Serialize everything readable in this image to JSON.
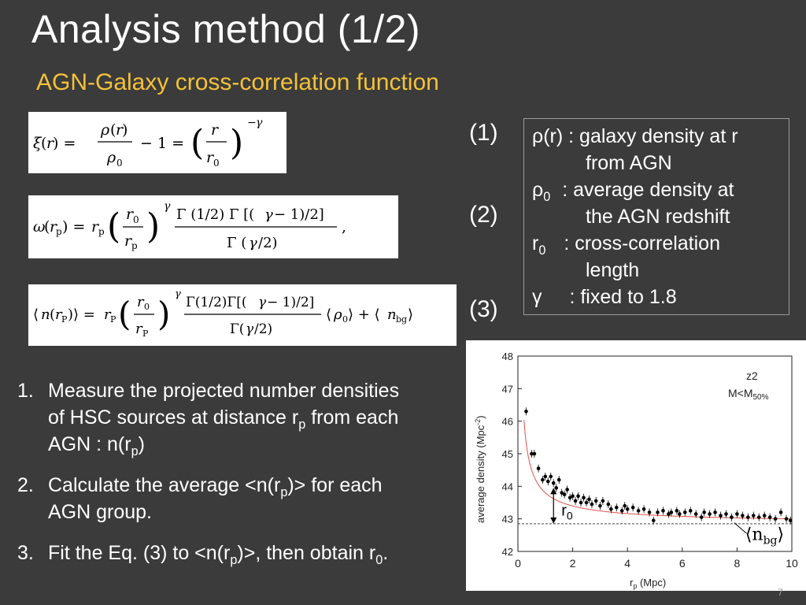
{
  "slide": {
    "title": "Analysis method (1/2)",
    "subtitle": "AGN-Galaxy cross-correlation function",
    "page_number": "7",
    "accent_color": "#f3c13a",
    "background_color": "#3b3b3b"
  },
  "equations": [
    {
      "number": "(1)",
      "formula": "ξ(r) = ρ(r)/ρ0 − 1 = (r/r0)^−γ"
    },
    {
      "number": "(2)",
      "formula": "ω(rp) = rp (r0/rp)^γ Γ(1/2) Γ[(γ − 1)/2] / Γ(γ/2),"
    },
    {
      "number": "(3)",
      "formula": "⟨n(rp)⟩ = rp (r0/rp)^γ Γ(1/2)Γ[(γ − 1)/2] / Γ(γ/2) ⟨ρ0⟩ + ⟨nbg⟩"
    }
  ],
  "legend": {
    "rho_sym": "ρ",
    "rho_arg": "(r)",
    "rho_desc_1": " : galaxy density at r",
    "rho_desc_2": "from AGN",
    "rho0_sym": "ρ",
    "rho0_sub": "0",
    "rho0_desc_1": " : average density at",
    "rho0_desc_2": "the AGN redshift",
    "r0_sym": "r",
    "r0_sub": "0",
    "r0_desc_1": " : cross-correlation",
    "r0_desc_2": "length",
    "gamma_sym": "γ",
    "gamma_desc": " : fixed to 1.8"
  },
  "steps": {
    "s1_num": "1.",
    "s1_l1": "Measure the projected number densities",
    "s1_l2a": "of HSC sources at distance r",
    "s1_l2sub": "p",
    "s1_l2b": " from each",
    "s1_l3a": "AGN : n(r",
    "s1_l3sub": "p",
    "s1_l3b": ")",
    "s2_num": "2.",
    "s2_l1a": "Calculate the average <n(r",
    "s2_l1sub": "p",
    "s2_l1b": ")> for each",
    "s2_l2": "AGN group.",
    "s3_num": "3.",
    "s3_a": "Fit the Eq. (3) to <n(r",
    "s3_sub1": "p",
    "s3_b": ")>,  then obtain r",
    "s3_sub2": "0",
    "s3_c": "."
  },
  "chart_data": {
    "type": "scatter",
    "xlabel_main": "r",
    "xlabel_sub": "p",
    "xlabel_unit": " (Mpc)",
    "ylabel": "average density (Mpc",
    "ylabel_sup": "-2",
    "ylabel_end": ")",
    "xlim": [
      0,
      10
    ],
    "ylim": [
      42,
      48
    ],
    "x_ticks": [
      "0",
      "2",
      "4",
      "6",
      "8",
      "10"
    ],
    "y_ticks": [
      "42",
      "43",
      "44",
      "45",
      "46",
      "47",
      "48"
    ],
    "annotation_group": "z2",
    "annotation_cut": "M<M",
    "annotation_cut_sub": "50%",
    "r0_label": "r",
    "r0_sub": "0",
    "nbg_label": "⟨n",
    "nbg_sub": "bg",
    "nbg_end": "⟩",
    "nbg_level": 42.85,
    "r0_value": 1.3,
    "fit_curve": {
      "nbg": 42.85,
      "A": 0.95,
      "gamma_minus_1": 0.8
    },
    "points": [
      [
        0.3,
        46.3
      ],
      [
        0.5,
        45.0
      ],
      [
        0.6,
        45.0
      ],
      [
        0.75,
        44.55
      ],
      [
        0.9,
        44.2
      ],
      [
        1.0,
        44.3
      ],
      [
        1.1,
        44.15
      ],
      [
        1.2,
        44.3
      ],
      [
        1.3,
        44.1
      ],
      [
        1.4,
        43.95
      ],
      [
        1.5,
        44.2
      ],
      [
        1.6,
        43.8
      ],
      [
        1.7,
        43.75
      ],
      [
        1.8,
        43.9
      ],
      [
        1.9,
        43.65
      ],
      [
        2.0,
        43.7
      ],
      [
        2.1,
        43.55
      ],
      [
        2.2,
        43.7
      ],
      [
        2.3,
        43.5
      ],
      [
        2.4,
        43.65
      ],
      [
        2.5,
        43.5
      ],
      [
        2.6,
        43.6
      ],
      [
        2.7,
        43.45
      ],
      [
        2.85,
        43.55
      ],
      [
        3.0,
        43.4
      ],
      [
        3.1,
        43.55
      ],
      [
        3.3,
        43.45
      ],
      [
        3.4,
        43.3
      ],
      [
        3.6,
        43.35
      ],
      [
        3.8,
        43.25
      ],
      [
        3.9,
        43.4
      ],
      [
        4.0,
        43.3
      ],
      [
        4.2,
        43.35
      ],
      [
        4.4,
        43.25
      ],
      [
        4.6,
        43.3
      ],
      [
        4.8,
        43.2
      ],
      [
        4.95,
        42.95
      ],
      [
        5.1,
        43.2
      ],
      [
        5.3,
        43.25
      ],
      [
        5.5,
        43.15
      ],
      [
        5.6,
        43.2
      ],
      [
        5.8,
        43.25
      ],
      [
        5.9,
        43.15
      ],
      [
        6.1,
        43.2
      ],
      [
        6.3,
        43.25
      ],
      [
        6.5,
        43.15
      ],
      [
        6.7,
        43.05
      ],
      [
        6.8,
        43.2
      ],
      [
        7.0,
        43.15
      ],
      [
        7.2,
        43.2
      ],
      [
        7.4,
        43.1
      ],
      [
        7.6,
        43.15
      ],
      [
        7.8,
        43.05
      ],
      [
        8.0,
        43.15
      ],
      [
        8.2,
        43.1
      ],
      [
        8.4,
        43.05
      ],
      [
        8.6,
        43.1
      ],
      [
        8.8,
        43.05
      ],
      [
        9.0,
        43.1
      ],
      [
        9.2,
        43.05
      ],
      [
        9.4,
        43.0
      ],
      [
        9.6,
        43.2
      ],
      [
        9.8,
        43.0
      ],
      [
        9.95,
        42.95
      ]
    ]
  }
}
